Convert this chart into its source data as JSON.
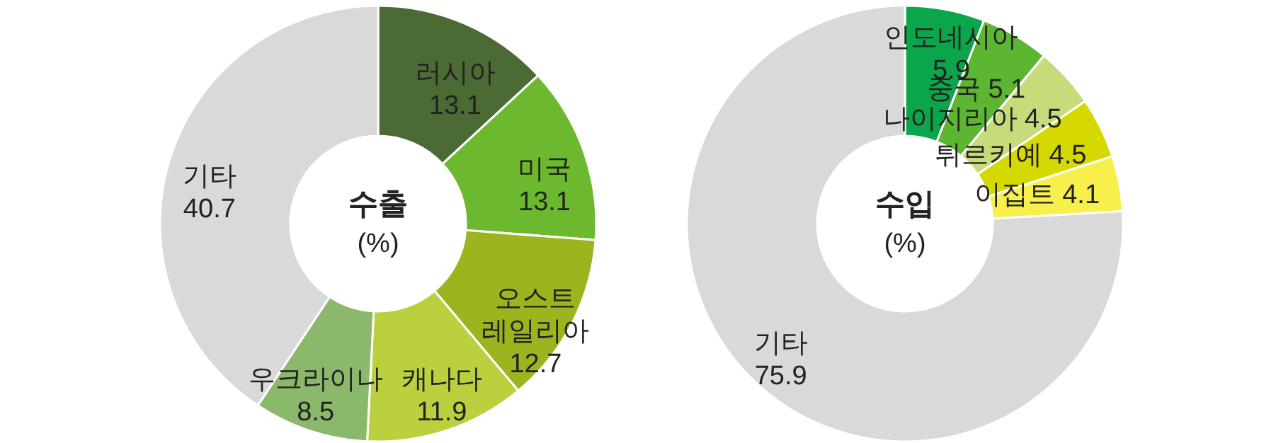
{
  "chart_data": [
    {
      "type": "donut",
      "title": "수출",
      "subtitle": "(%)",
      "data_labels": true,
      "legend": false,
      "categories": [
        "러시아",
        "미국",
        "오스트레일리아",
        "캐나다",
        "우크라이나",
        "기타"
      ],
      "values": [
        13.1,
        13.1,
        12.7,
        11.9,
        8.5,
        40.7
      ],
      "colors": [
        "#4b6a34",
        "#6cb92f",
        "#9cb51f",
        "#bccf3f",
        "#8cb86c",
        "#d9d9d9"
      ]
    },
    {
      "type": "donut",
      "title": "수입",
      "subtitle": "(%)",
      "data_labels": true,
      "legend": false,
      "categories": [
        "인도네시아",
        "중국",
        "나이지리아",
        "튀르키예",
        "이집트",
        "기타"
      ],
      "values": [
        5.9,
        5.1,
        4.5,
        4.5,
        4.1,
        75.9
      ],
      "colors": [
        "#0ba64b",
        "#5db632",
        "#c6dc7b",
        "#d5d900",
        "#f6ef4c",
        "#d9d9d9"
      ]
    }
  ]
}
